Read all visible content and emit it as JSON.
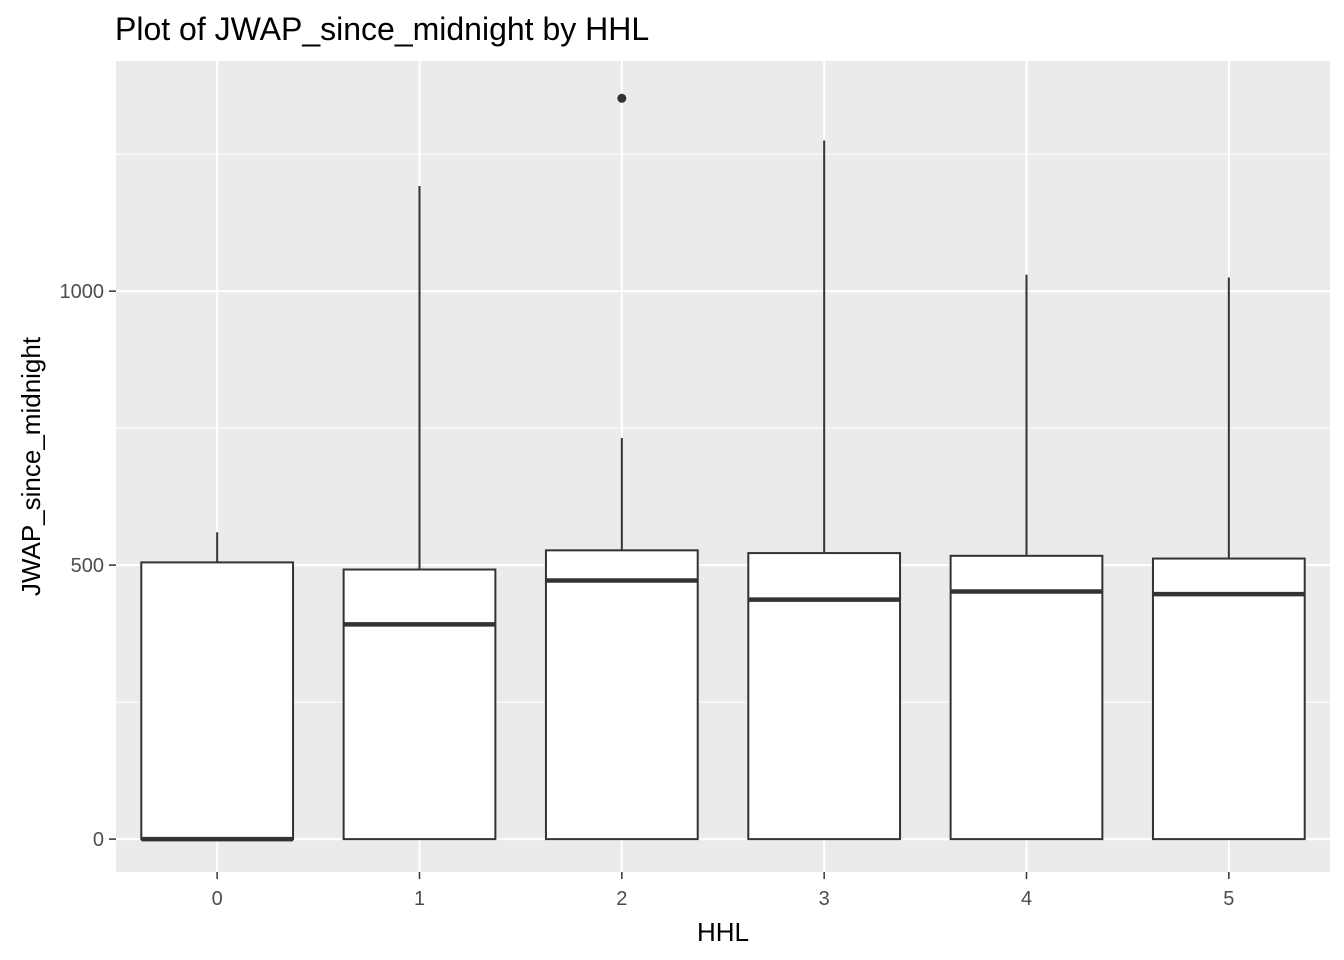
{
  "chart_data": {
    "type": "boxplot",
    "title": "Plot of JWAP_since_midnight by HHL",
    "xlabel": "HHL",
    "ylabel": "JWAP_since_midnight",
    "categories": [
      "0",
      "1",
      "2",
      "3",
      "4",
      "5"
    ],
    "ylim": [
      -60,
      1420
    ],
    "yticks": [
      0,
      500,
      1000
    ],
    "y_minor_ticks": [
      250,
      750,
      1250
    ],
    "grid": true,
    "colors": {
      "panel_bg": "#ebebeb",
      "grid": "#ffffff",
      "box_fill": "#ffffff",
      "box_stroke": "#333333",
      "outlier": "#333333"
    },
    "boxes": [
      {
        "x": "0",
        "min": 0,
        "q1": 0,
        "median": 0,
        "q3": 505,
        "max": 560,
        "outliers": []
      },
      {
        "x": "1",
        "min": 0,
        "q1": 0,
        "median": 392,
        "q3": 492,
        "max": 1192,
        "outliers": []
      },
      {
        "x": "2",
        "min": 0,
        "q1": 0,
        "median": 472,
        "q3": 527,
        "max": 732,
        "outliers": [
          1352
        ]
      },
      {
        "x": "3",
        "min": 0,
        "q1": 0,
        "median": 437,
        "q3": 522,
        "max": 1275,
        "outliers": []
      },
      {
        "x": "4",
        "min": 0,
        "q1": 0,
        "median": 452,
        "q3": 517,
        "max": 1030,
        "outliers": []
      },
      {
        "x": "5",
        "min": 0,
        "q1": 0,
        "median": 447,
        "q3": 512,
        "max": 1025,
        "outliers": []
      }
    ]
  }
}
